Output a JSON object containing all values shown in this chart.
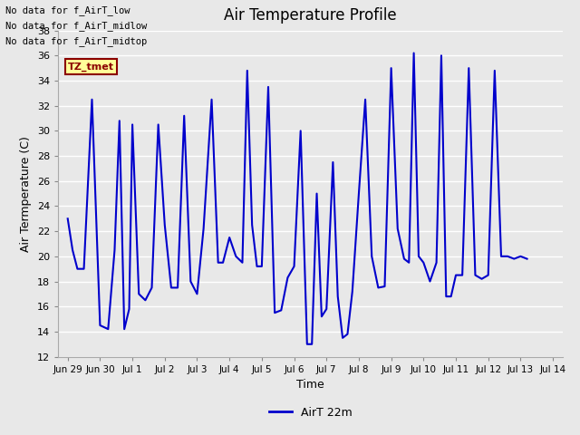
{
  "title": "Air Temperature Profile",
  "ylabel": "Air Termperature (C)",
  "xlabel": "Time",
  "ylim": [
    12,
    38
  ],
  "line_color": "#0000cc",
  "line_label": "AirT 22m",
  "plot_bg_color": "#e8e8e8",
  "grid_color": "#ffffff",
  "annotation_lines": [
    "No data for f_AirT_low",
    "No data for f_AirT_midlow",
    "No data for f_AirT_midtop"
  ],
  "tz_label": "TZ_tmet",
  "x_tick_labels": [
    "Jun 29",
    "Jun 30",
    "Jul 1",
    "Jul 2",
    "Jul 3",
    "Jul 4",
    "Jul 5",
    "Jul 6",
    "Jul 7",
    "Jul 8",
    "Jul 9",
    "Jul 10",
    "Jul 11",
    "Jul 12",
    "Jul 13",
    "Jul 14"
  ],
  "x_tick_positions": [
    0,
    1,
    2,
    3,
    4,
    5,
    6,
    7,
    8,
    9,
    10,
    11,
    12,
    13,
    14,
    15
  ],
  "time_values": [
    0.0,
    0.15,
    0.3,
    0.5,
    0.75,
    1.0,
    1.25,
    1.45,
    1.6,
    1.75,
    1.9,
    2.0,
    2.2,
    2.4,
    2.6,
    2.8,
    3.0,
    3.2,
    3.4,
    3.6,
    3.8,
    4.0,
    4.2,
    4.45,
    4.65,
    4.8,
    5.0,
    5.2,
    5.4,
    5.55,
    5.7,
    5.85,
    6.0,
    6.2,
    6.4,
    6.6,
    6.8,
    7.0,
    7.2,
    7.4,
    7.55,
    7.7,
    7.85,
    8.0,
    8.2,
    8.35,
    8.5,
    8.65,
    8.8,
    9.0,
    9.2,
    9.4,
    9.6,
    9.8,
    10.0,
    10.2,
    10.4,
    10.55,
    10.7,
    10.85,
    11.0,
    11.2,
    11.4,
    11.55,
    11.7,
    11.85,
    12.0,
    12.2,
    12.4,
    12.6,
    12.8,
    13.0,
    13.2,
    13.4,
    13.6,
    13.8,
    14.0,
    14.2
  ],
  "temp_values": [
    23.0,
    20.5,
    19.0,
    19.0,
    32.5,
    14.5,
    14.2,
    20.5,
    30.8,
    14.2,
    15.8,
    30.5,
    17.0,
    16.5,
    17.5,
    30.5,
    22.5,
    17.5,
    17.5,
    31.2,
    18.0,
    17.0,
    22.2,
    32.5,
    19.5,
    19.5,
    21.5,
    20.0,
    19.5,
    34.8,
    22.5,
    19.2,
    19.2,
    33.5,
    15.5,
    15.7,
    18.3,
    19.2,
    30.0,
    13.0,
    13.0,
    25.0,
    15.2,
    15.8,
    27.5,
    16.8,
    13.5,
    13.8,
    17.2,
    25.0,
    32.5,
    20.0,
    17.5,
    17.6,
    35.0,
    22.2,
    19.8,
    19.5,
    36.2,
    20.0,
    19.5,
    18.0,
    19.5,
    36.0,
    16.8,
    16.8,
    18.5,
    18.5,
    35.0,
    18.5,
    18.2,
    18.5,
    34.8,
    20.0,
    20.0,
    19.8,
    20.0,
    19.8
  ]
}
